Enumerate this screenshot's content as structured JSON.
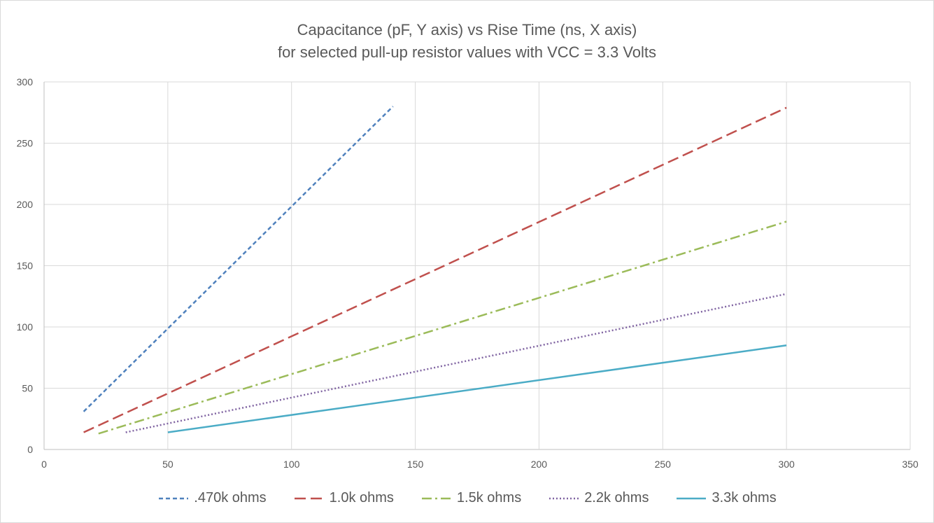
{
  "chart_data": {
    "type": "line",
    "title": "Capacitance (pF, Y axis) vs Rise Time (ns, X axis)",
    "subtitle": "for selected pull-up resistor values with VCC = 3.3 Volts",
    "xlim": [
      0,
      350
    ],
    "ylim": [
      0,
      300
    ],
    "x_ticks": [
      0,
      50,
      100,
      150,
      200,
      250,
      300,
      350
    ],
    "y_ticks": [
      0,
      50,
      100,
      150,
      200,
      250,
      300
    ],
    "grid": true,
    "legend_position": "bottom",
    "series": [
      {
        "name": ".470k ohms",
        "color": "#4f81bd",
        "dash": "6,4",
        "x": [
          16,
          141
        ],
        "y": [
          31,
          280
        ]
      },
      {
        "name": "1.0k ohms",
        "color": "#c0504d",
        "dash": "16,7",
        "x": [
          16,
          300
        ],
        "y": [
          14,
          279
        ]
      },
      {
        "name": "1.5k ohms",
        "color": "#9bbb59",
        "dash": "14,5,3,5",
        "x": [
          22,
          300
        ],
        "y": [
          13,
          186
        ]
      },
      {
        "name": "2.2k ohms",
        "color": "#8064a2",
        "dash": "2,3",
        "x": [
          33,
          300
        ],
        "y": [
          14,
          127
        ]
      },
      {
        "name": "3.3k ohms",
        "color": "#4bacc6",
        "dash": "",
        "x": [
          50,
          300
        ],
        "y": [
          14,
          85
        ]
      }
    ]
  }
}
